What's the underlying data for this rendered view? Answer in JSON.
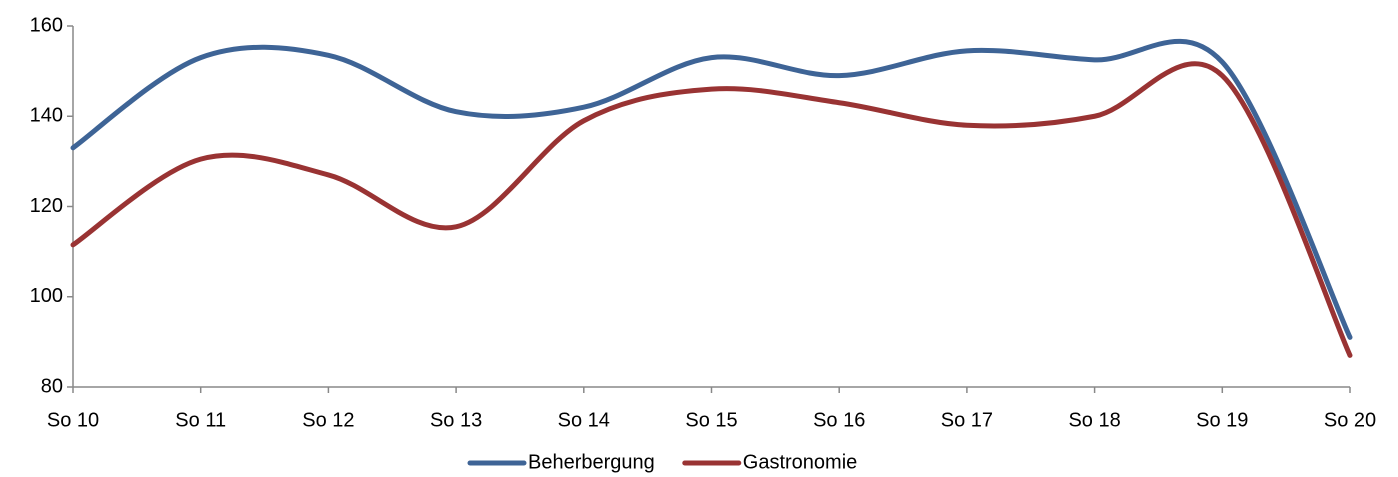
{
  "chart_data": {
    "type": "line",
    "categories": [
      "So 10",
      "So 11",
      "So 12",
      "So 13",
      "So 14",
      "So 15",
      "So 16",
      "So 17",
      "So 18",
      "So 19",
      "So 20"
    ],
    "series": [
      {
        "name": "Beherbergung",
        "color": "#3e6496",
        "values": [
          133,
          153,
          153.5,
          141,
          142,
          153,
          149,
          154.5,
          152.5,
          152,
          91
        ]
      },
      {
        "name": "Gastronomie",
        "color": "#993333",
        "values": [
          111.5,
          130.5,
          127,
          115.5,
          139,
          146,
          143,
          138,
          140,
          149,
          87
        ]
      }
    ],
    "ylim": [
      80,
      160
    ],
    "yticks": [
      80,
      100,
      120,
      140,
      160
    ],
    "grid": false,
    "legend": "bottom",
    "smooth": true
  }
}
